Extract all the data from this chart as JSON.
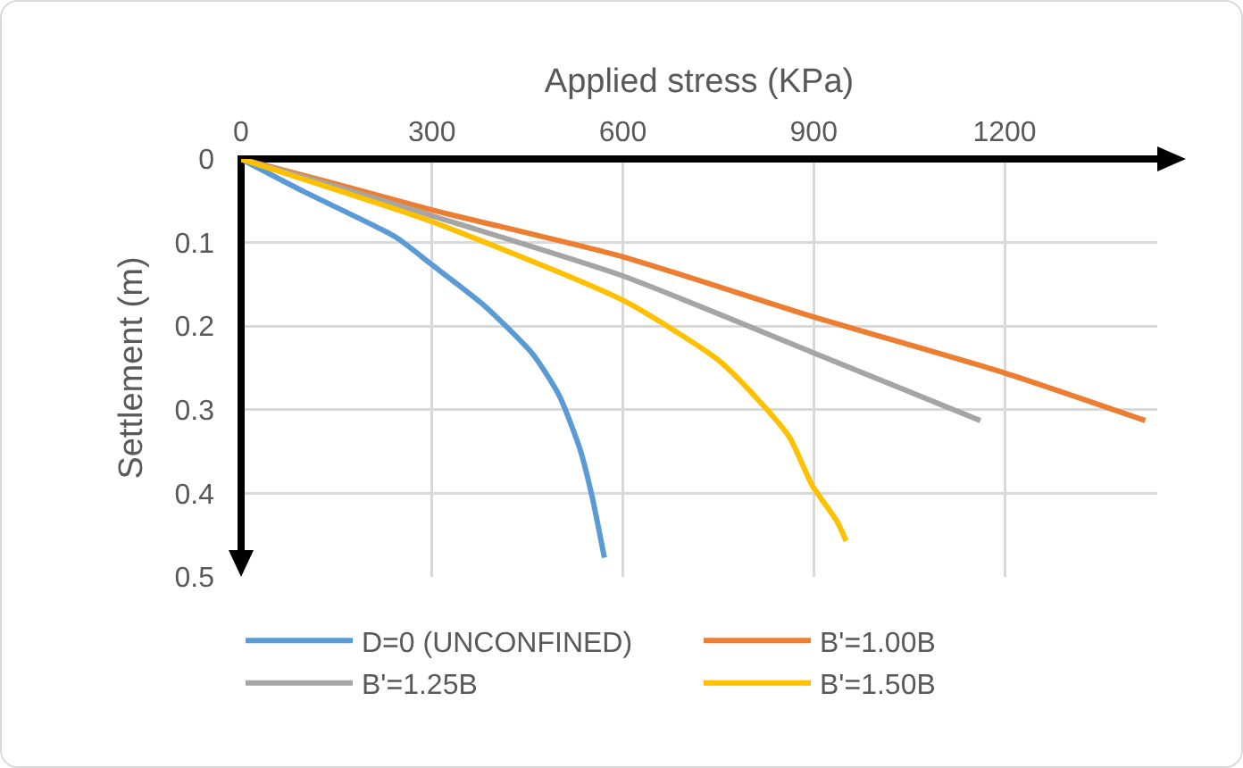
{
  "chart_data": {
    "type": "line",
    "xlabel": "Applied stress (KPa)",
    "ylabel": "Settlement (m)",
    "xlim": [
      0,
      1440
    ],
    "xticks": [
      0,
      300,
      600,
      900,
      1200
    ],
    "ylim": [
      0.5,
      0
    ],
    "yticks": [
      0,
      0.1,
      0.2,
      0.3,
      0.4,
      0.5
    ],
    "grid": true,
    "legend": "bottom",
    "marker": "none",
    "line_style": "solid",
    "series": [
      {
        "name": "D=0 (UNCONFINED)",
        "color": "#5b9bd5",
        "x": [
          0,
          101,
          242,
          299,
          383,
          458,
          500,
          533,
          552,
          571
        ],
        "values": [
          0,
          0.04,
          0.093,
          0.126,
          0.176,
          0.233,
          0.283,
          0.348,
          0.405,
          0.477
        ]
      },
      {
        "name": "B'=1.00B",
        "color": "#ed7d31",
        "x": [
          0,
          150,
          300,
          600,
          900,
          1200,
          1421
        ],
        "values": [
          0,
          0.03,
          0.061,
          0.117,
          0.189,
          0.256,
          0.313
        ]
      },
      {
        "name": "B'=1.25B",
        "color": "#a5a5a5",
        "x": [
          0,
          150,
          300,
          600,
          900,
          1162
        ],
        "values": [
          0,
          0.033,
          0.068,
          0.14,
          0.232,
          0.313
        ]
      },
      {
        "name": "B'=1.50B",
        "color": "#ffc000",
        "x": [
          0,
          150,
          300,
          600,
          749,
          815,
          862,
          898,
          937,
          951
        ],
        "values": [
          0,
          0.037,
          0.075,
          0.169,
          0.24,
          0.29,
          0.333,
          0.391,
          0.434,
          0.457
        ]
      }
    ]
  }
}
